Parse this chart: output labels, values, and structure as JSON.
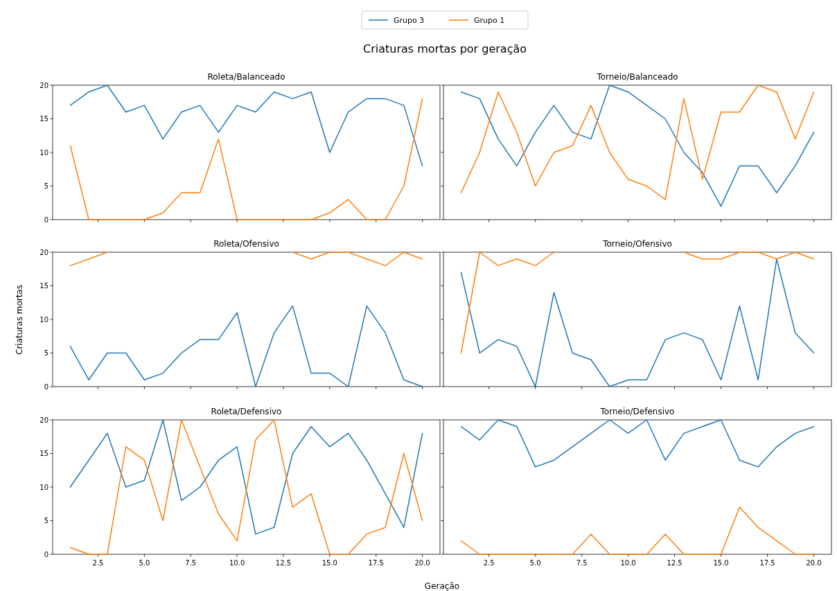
{
  "chart_data": [
    {
      "type": "line",
      "title": "Roleta/Balanceado",
      "annotations": [
        "Criaturas mortas por geração"
      ],
      "legend": "top",
      "tick_labels": "y",
      "grid": false,
      "xlim": [
        0.05,
        20.95
      ],
      "ylim": [
        0,
        20
      ],
      "xticks": [
        {
          "value": 2.5,
          "label": null
        },
        {
          "value": 5,
          "label": null
        },
        {
          "value": 7.5,
          "label": null
        },
        {
          "value": 10,
          "label": null
        },
        {
          "value": 12.5,
          "label": null
        },
        {
          "value": 15,
          "label": null
        },
        {
          "value": 17.5,
          "label": null
        },
        {
          "value": 20,
          "label": null
        }
      ],
      "yticks": [
        0,
        5,
        10,
        15,
        20
      ],
      "x": [
        1,
        2,
        3,
        4,
        5,
        6,
        7,
        8,
        9,
        10,
        11,
        12,
        13,
        14,
        15,
        16,
        17,
        18,
        19,
        20
      ],
      "series": [
        {
          "name": "Grupo 3",
          "color": "#1f77b4",
          "values": [
            17,
            19,
            20,
            16,
            17,
            12,
            16,
            17,
            13,
            17,
            16,
            19,
            18,
            19,
            10,
            16,
            18,
            18,
            17,
            8
          ]
        },
        {
          "name": "Grupo 1",
          "color": "#ff7f0e",
          "values": [
            11,
            0,
            0,
            0,
            0,
            1,
            4,
            4,
            12,
            0,
            0,
            0,
            0,
            0,
            1,
            3,
            0,
            0,
            5,
            18
          ]
        }
      ]
    },
    {
      "type": "line",
      "title": "Torneio/Balanceado",
      "tick_labels": false,
      "grid": false,
      "xlim": [
        0.05,
        20.95
      ],
      "ylim": [
        0,
        20
      ],
      "xticks": [
        {
          "value": 2.5,
          "label": null
        },
        {
          "value": 5,
          "label": null
        },
        {
          "value": 7.5,
          "label": null
        },
        {
          "value": 10,
          "label": null
        },
        {
          "value": 12.5,
          "label": null
        },
        {
          "value": 15,
          "label": null
        },
        {
          "value": 17.5,
          "label": null
        },
        {
          "value": 20,
          "label": null
        }
      ],
      "yticks": [
        0,
        5,
        10,
        15,
        20
      ],
      "x": [
        1,
        2,
        3,
        4,
        5,
        6,
        7,
        8,
        9,
        10,
        11,
        12,
        13,
        14,
        15,
        16,
        17,
        18,
        19,
        20
      ],
      "series": [
        {
          "color": "#1f77b4",
          "values": [
            19,
            18,
            12,
            8,
            13,
            17,
            13,
            12,
            20,
            19,
            17,
            15,
            10,
            7,
            2,
            8,
            8,
            4,
            8,
            13
          ]
        },
        {
          "color": "#ff7f0e",
          "values": [
            4,
            10,
            19,
            13,
            5,
            10,
            11,
            17,
            10,
            6,
            5,
            3,
            18,
            6,
            16,
            16,
            20,
            19,
            12,
            19
          ]
        }
      ]
    },
    {
      "type": "line",
      "title": "Roleta/Ofensivo",
      "ylabel": "Criaturas mortas",
      "tick_labels": "y",
      "grid": false,
      "xlim": [
        0.05,
        20.95
      ],
      "ylim": [
        0,
        20
      ],
      "xticks": [
        {
          "value": 2.5,
          "label": null
        },
        {
          "value": 5,
          "label": null
        },
        {
          "value": 7.5,
          "label": null
        },
        {
          "value": 10,
          "label": null
        },
        {
          "value": 12.5,
          "label": null
        },
        {
          "value": 15,
          "label": null
        },
        {
          "value": 17.5,
          "label": null
        },
        {
          "value": 20,
          "label": null
        }
      ],
      "yticks": [
        0,
        5,
        10,
        15,
        20
      ],
      "x": [
        1,
        2,
        3,
        4,
        5,
        6,
        7,
        8,
        9,
        10,
        11,
        12,
        13,
        14,
        15,
        16,
        17,
        18,
        19,
        20
      ],
      "series": [
        {
          "color": "#1f77b4",
          "values": [
            6,
            1,
            5,
            5,
            1,
            2,
            5,
            7,
            7,
            11,
            0,
            8,
            12,
            2,
            2,
            0,
            12,
            8,
            1,
            0
          ]
        },
        {
          "color": "#ff7f0e",
          "values": [
            18,
            19,
            20,
            null,
            null,
            null,
            null,
            null,
            null,
            null,
            null,
            null,
            20,
            19,
            20,
            20,
            19,
            18,
            20,
            19
          ]
        }
      ]
    },
    {
      "type": "line",
      "title": "Torneio/Ofensivo",
      "tick_labels": false,
      "grid": false,
      "xlim": [
        0.05,
        20.95
      ],
      "ylim": [
        0,
        20
      ],
      "xticks": [
        {
          "value": 2.5,
          "label": null
        },
        {
          "value": 5,
          "label": null
        },
        {
          "value": 7.5,
          "label": null
        },
        {
          "value": 10,
          "label": null
        },
        {
          "value": 12.5,
          "label": null
        },
        {
          "value": 15,
          "label": null
        },
        {
          "value": 17.5,
          "label": null
        },
        {
          "value": 20,
          "label": null
        }
      ],
      "yticks": [
        0,
        5,
        10,
        15,
        20
      ],
      "x": [
        1,
        2,
        3,
        4,
        5,
        6,
        7,
        8,
        9,
        10,
        11,
        12,
        13,
        14,
        15,
        16,
        17,
        18,
        19,
        20
      ],
      "series": [
        {
          "color": "#1f77b4",
          "values": [
            17,
            5,
            7,
            6,
            0,
            14,
            5,
            4,
            0,
            1,
            1,
            7,
            8,
            7,
            1,
            12,
            1,
            19,
            8,
            5
          ]
        },
        {
          "color": "#ff7f0e",
          "values": [
            5,
            20,
            18,
            19,
            18,
            20,
            null,
            null,
            null,
            null,
            null,
            null,
            20,
            19,
            19,
            20,
            20,
            19,
            20,
            19
          ]
        }
      ]
    },
    {
      "type": "line",
      "title": "Roleta/Defensivo",
      "xlabel": "Geração",
      "grid": false,
      "xlim": [
        0.05,
        20.95
      ],
      "ylim": [
        0,
        20
      ],
      "xticks": [
        {
          "value": 2.5,
          "label": "2.5"
        },
        {
          "value": 5,
          "label": "5.0"
        },
        {
          "value": 7.5,
          "label": "7.5"
        },
        {
          "value": 10,
          "label": "10.0"
        },
        {
          "value": 12.5,
          "label": "12.5"
        },
        {
          "value": 15,
          "label": "15.0"
        },
        {
          "value": 17.5,
          "label": "17.5"
        },
        {
          "value": 20,
          "label": "20.0"
        }
      ],
      "yticks": [
        0,
        5,
        10,
        15,
        20
      ],
      "x": [
        1,
        2,
        3,
        4,
        5,
        6,
        7,
        8,
        9,
        10,
        11,
        12,
        13,
        14,
        15,
        16,
        17,
        18,
        19,
        20
      ],
      "series": [
        {
          "color": "#1f77b4",
          "values": [
            10,
            14,
            18,
            10,
            11,
            20,
            8,
            10,
            14,
            16,
            3,
            4,
            15,
            19,
            16,
            18,
            14,
            9,
            4,
            18
          ]
        },
        {
          "color": "#ff7f0e",
          "values": [
            1,
            0,
            0,
            16,
            14,
            5,
            20,
            13,
            6,
            2,
            17,
            20,
            7,
            9,
            0,
            0,
            3,
            4,
            15,
            5
          ]
        }
      ]
    },
    {
      "type": "line",
      "title": "Torneio/Defensivo",
      "tick_labels": "x",
      "grid": false,
      "xlim": [
        0.05,
        20.95
      ],
      "ylim": [
        0,
        20
      ],
      "xticks": [
        {
          "value": 2.5,
          "label": "2.5"
        },
        {
          "value": 5,
          "label": "5.0"
        },
        {
          "value": 7.5,
          "label": "7.5"
        },
        {
          "value": 10,
          "label": "10.0"
        },
        {
          "value": 12.5,
          "label": "12.5"
        },
        {
          "value": 15,
          "label": "15.0"
        },
        {
          "value": 17.5,
          "label": "17.5"
        },
        {
          "value": 20,
          "label": "20.0"
        }
      ],
      "yticks": [
        0,
        5,
        10,
        15,
        20
      ],
      "x": [
        1,
        2,
        3,
        4,
        5,
        6,
        7,
        8,
        9,
        10,
        11,
        12,
        13,
        14,
        15,
        16,
        17,
        18,
        19,
        20
      ],
      "series": [
        {
          "color": "#1f77b4",
          "values": [
            19,
            17,
            20,
            19,
            13,
            14,
            16,
            18,
            20,
            18,
            20,
            14,
            18,
            19,
            20,
            14,
            13,
            16,
            18,
            19
          ]
        },
        {
          "color": "#ff7f0e",
          "values": [
            2,
            0,
            0,
            0,
            0,
            0,
            0,
            3,
            0,
            0,
            0,
            3,
            0,
            0,
            0,
            7,
            4,
            2,
            0,
            0
          ]
        }
      ]
    }
  ]
}
